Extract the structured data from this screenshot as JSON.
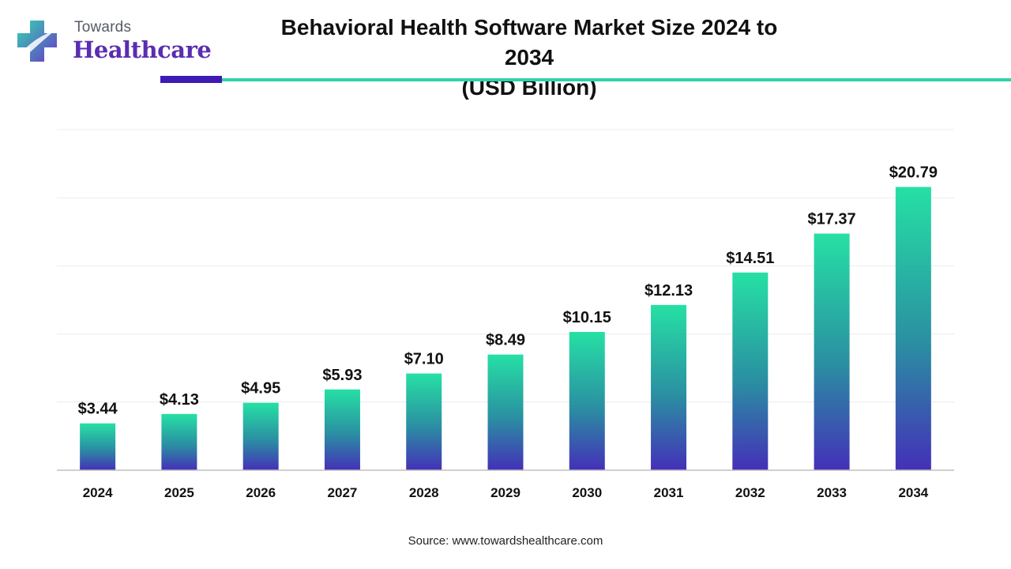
{
  "logo": {
    "line1": "Towards",
    "line2": "Healthcare"
  },
  "header": {
    "title_line1": "Behavioral Health Software Market Size 2024 to 2034",
    "title_line2": "(USD Billion)"
  },
  "chart_data": {
    "type": "bar",
    "title": "Behavioral Health Software Market Size 2024 to 2034 (USD Billion)",
    "categories": [
      "2024",
      "2025",
      "2026",
      "2027",
      "2028",
      "2029",
      "2030",
      "2031",
      "2032",
      "2033",
      "2034"
    ],
    "values": [
      3.44,
      4.13,
      4.95,
      5.93,
      7.1,
      8.49,
      10.15,
      12.13,
      14.51,
      17.37,
      20.79
    ],
    "value_labels": [
      "$3.44",
      "$4.13",
      "$4.95",
      "$5.93",
      "$7.10",
      "$8.49",
      "$10.15",
      "$12.13",
      "$14.51",
      "$17.37",
      "$20.79"
    ],
    "xlabel": "",
    "ylabel": "",
    "ylim": [
      0,
      25
    ],
    "grid": true,
    "legend": "none",
    "colors": {
      "bar_top": "#26e0a4",
      "bar_mid": "#2a8fa2",
      "bar_bottom": "#4430b8"
    }
  },
  "footer": {
    "source": "Source: www.towardshealthcare.com"
  }
}
